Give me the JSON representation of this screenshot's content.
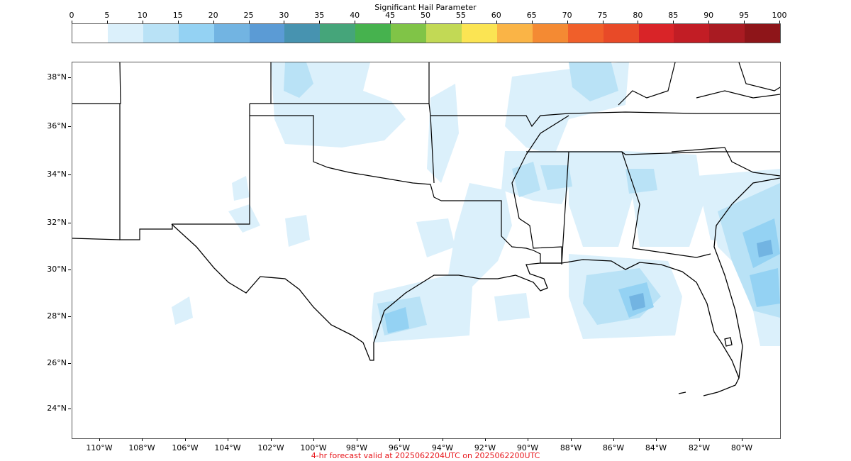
{
  "colorbar": {
    "title": "Significant Hail Parameter",
    "ticks": [
      0,
      5,
      10,
      15,
      20,
      25,
      30,
      35,
      40,
      45,
      50,
      55,
      60,
      65,
      70,
      75,
      80,
      85,
      90,
      95,
      100
    ],
    "colors": [
      "#ffffff",
      "#dbf0fb",
      "#b9e2f6",
      "#94d2f3",
      "#72b4e2",
      "#5b9bd5",
      "#4793b0",
      "#45a57a",
      "#46b24e",
      "#80c447",
      "#c2d955",
      "#fbe453",
      "#fab446",
      "#f48a33",
      "#f05f2a",
      "#e84a28",
      "#d92428",
      "#c21d25",
      "#a91b22",
      "#8e1519"
    ]
  },
  "map": {
    "lat_labels": [
      "38°N",
      "36°N",
      "34°N",
      "32°N",
      "30°N",
      "28°N",
      "26°N",
      "24°N"
    ],
    "lon_labels": [
      "110°W",
      "108°W",
      "106°W",
      "104°W",
      "102°W",
      "100°W",
      "98°W",
      "96°W",
      "94°W",
      "92°W",
      "90°W",
      "88°W",
      "86°W",
      "84°W",
      "82°W",
      "80°W"
    ]
  },
  "footer": "4-hr forecast valid at 2025062204UTC on 2025062200UTC"
}
